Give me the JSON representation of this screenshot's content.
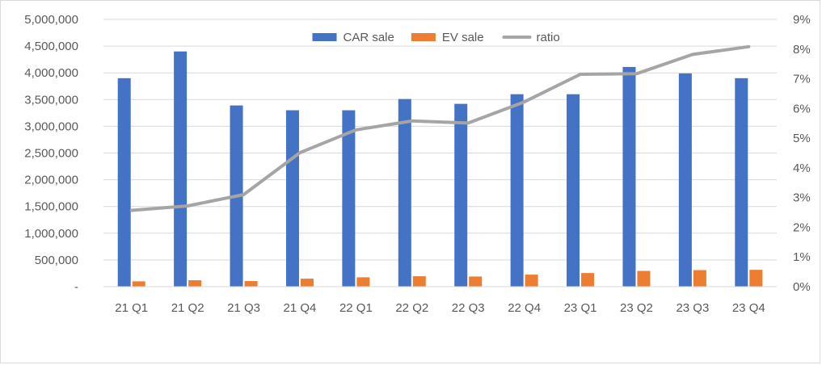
{
  "chart_data": {
    "type": "bar",
    "title": "",
    "xlabel": "",
    "ylabel": "",
    "ylabel_right": "",
    "categories": [
      "21 Q1",
      "21 Q2",
      "21 Q3",
      "21 Q4",
      "22 Q1",
      "22 Q2",
      "22 Q3",
      "22 Q4",
      "23 Q1",
      "23 Q2",
      "23 Q3",
      "23 Q4"
    ],
    "series": [
      {
        "name": "CAR sale",
        "type": "bar",
        "axis": "left",
        "color": "#4472C4",
        "values": [
          3900000,
          4400000,
          3390000,
          3300000,
          3300000,
          3510000,
          3420000,
          3600000,
          3600000,
          4110000,
          3990000,
          3900000
        ]
      },
      {
        "name": "EV sale",
        "type": "bar",
        "axis": "left",
        "color": "#ED7D31",
        "values": [
          100000,
          120000,
          105000,
          150000,
          175000,
          195000,
          190000,
          225000,
          255000,
          295000,
          310000,
          315000
        ]
      },
      {
        "name": "ratio",
        "type": "line",
        "axis": "right",
        "color": "#A5A5A5",
        "values": [
          0.0257,
          0.0272,
          0.031,
          0.0451,
          0.0528,
          0.0558,
          0.0551,
          0.0622,
          0.0715,
          0.0717,
          0.0782,
          0.0808
        ]
      }
    ],
    "ylim": [
      0,
      5000000
    ],
    "y_ticks": [
      "-",
      "500,000",
      "1,000,000",
      "1,500,000",
      "2,000,000",
      "2,500,000",
      "3,000,000",
      "3,500,000",
      "4,000,000",
      "4,500,000",
      "5,000,000"
    ],
    "ylim_right": [
      0,
      0.09
    ],
    "y_right_ticks": [
      "0%",
      "1%",
      "2%",
      "3%",
      "4%",
      "5%",
      "6%",
      "7%",
      "8%",
      "9%"
    ],
    "grid": true,
    "legend_position": "top-center"
  }
}
